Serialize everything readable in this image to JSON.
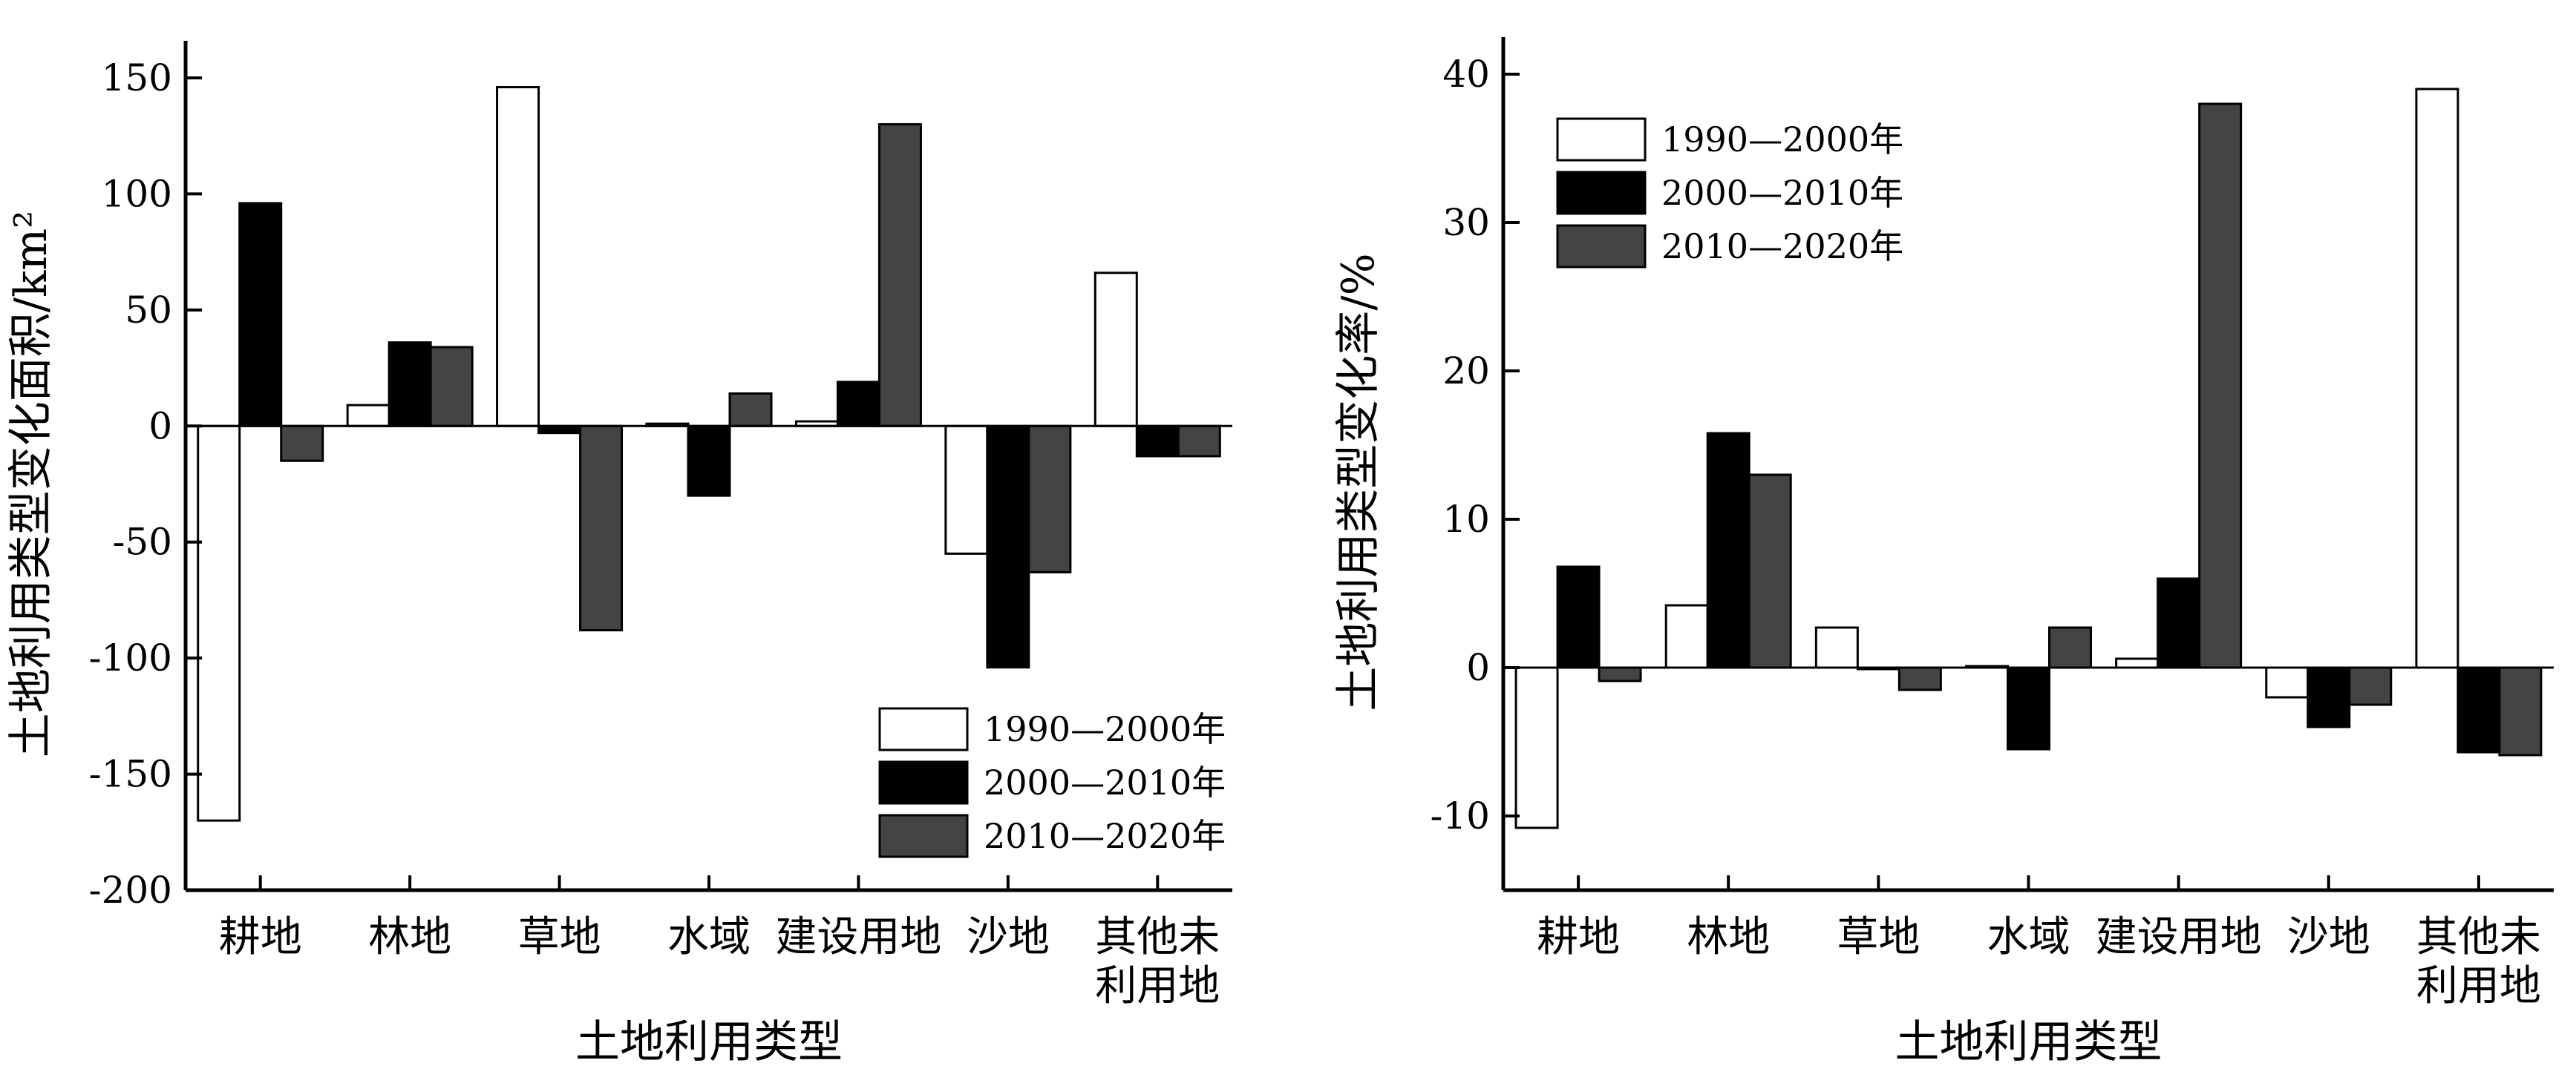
{
  "colors": {
    "series_fills": [
      "#ffffff",
      "#000000",
      "#444444"
    ],
    "bar_stroke": "#000000",
    "axis": "#000000",
    "background": "#ffffff"
  },
  "chart_data": [
    {
      "type": "bar",
      "title": "",
      "xlabel": "土地利用类型",
      "ylabel": "土地利用类型变化面积/km²",
      "ylim": [
        -200,
        160
      ],
      "yticks": [
        -200,
        -150,
        -100,
        -50,
        0,
        50,
        100,
        150
      ],
      "grid": false,
      "legend_position": "bottom-right",
      "categories": [
        "耕地",
        "林地",
        "草地",
        "水域",
        "建设用地",
        "沙地",
        "其他未利用地"
      ],
      "category_lines": [
        [
          "耕地"
        ],
        [
          "林地"
        ],
        [
          "草地"
        ],
        [
          "水域"
        ],
        [
          "建设用地"
        ],
        [
          "沙地"
        ],
        [
          "其他未",
          "利用地"
        ]
      ],
      "series": [
        {
          "name": "1990—2000年",
          "values": [
            -170,
            9,
            146,
            1,
            2,
            -55,
            66
          ]
        },
        {
          "name": "2000—2010年",
          "values": [
            96,
            36,
            -3,
            -30,
            19,
            -104,
            -13
          ]
        },
        {
          "name": "2010—2020年",
          "values": [
            -15,
            34,
            -88,
            14,
            130,
            -63,
            -13
          ]
        }
      ]
    },
    {
      "type": "bar",
      "title": "",
      "xlabel": "土地利用类型",
      "ylabel": "土地利用类型变化率/%",
      "ylim": [
        -15,
        42
      ],
      "yticks": [
        -10,
        0,
        10,
        20,
        30,
        40
      ],
      "grid": false,
      "legend_position": "top-left",
      "categories": [
        "耕地",
        "林地",
        "草地",
        "水域",
        "建设用地",
        "沙地",
        "其他未利用地"
      ],
      "category_lines": [
        [
          "耕地"
        ],
        [
          "林地"
        ],
        [
          "草地"
        ],
        [
          "水域"
        ],
        [
          "建设用地"
        ],
        [
          "沙地"
        ],
        [
          "其他未",
          "利用地"
        ]
      ],
      "series": [
        {
          "name": "1990—2000年",
          "values": [
            -10.8,
            4.2,
            2.7,
            0.1,
            0.6,
            -2.0,
            39.0
          ]
        },
        {
          "name": "2000—2010年",
          "values": [
            6.8,
            15.8,
            -0.1,
            -5.5,
            6.0,
            -4.0,
            -5.7
          ]
        },
        {
          "name": "2010—2020年",
          "values": [
            -0.9,
            13.0,
            -1.5,
            2.7,
            38.0,
            -2.5,
            -5.9
          ]
        }
      ]
    }
  ]
}
